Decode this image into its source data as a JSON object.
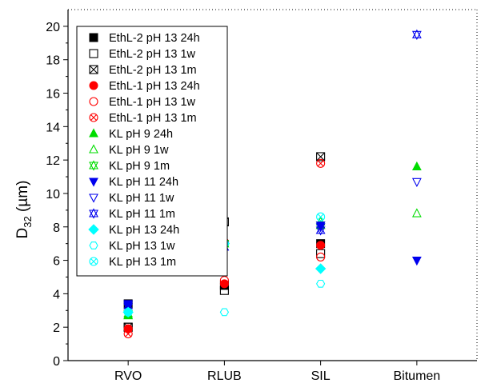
{
  "chart_data": {
    "type": "scatter",
    "title": "",
    "xlabel": "",
    "ylabel_main": "D",
    "ylabel_sub": "32",
    "ylabel_unit": " (µm)",
    "categories": [
      "RVO",
      "RLUB",
      "SIL",
      "Bitumen"
    ],
    "ylim": [
      0,
      21
    ],
    "yticks": [
      0,
      2,
      4,
      6,
      8,
      10,
      12,
      14,
      16,
      18,
      20
    ],
    "grid": false,
    "legend_position": "top-left",
    "series": [
      {
        "name": "EthL-2 pH 13 24h",
        "marker": "square-filled",
        "color": "#000000",
        "values": [
          3.4,
          4.5,
          7.0,
          null
        ]
      },
      {
        "name": "EthL-2 pH 13 1w",
        "marker": "square-open",
        "color": "#000000",
        "values": [
          2.0,
          4.2,
          6.4,
          null
        ]
      },
      {
        "name": "EthL-2 pH 13 1m",
        "marker": "square-x",
        "color": "#000000",
        "values": [
          2.0,
          8.3,
          12.2,
          null
        ]
      },
      {
        "name": "EthL-1 pH 13 24h",
        "marker": "circle-filled",
        "color": "#ff0000",
        "values": [
          1.9,
          4.6,
          6.9,
          null
        ]
      },
      {
        "name": "EthL-1 pH 13 1w",
        "marker": "circle-open",
        "color": "#ff0000",
        "values": [
          1.9,
          4.8,
          6.2,
          null
        ]
      },
      {
        "name": "EthL-1 pH 13 1m",
        "marker": "circle-x",
        "color": "#ff0000",
        "values": [
          1.6,
          7.1,
          11.8,
          null
        ]
      },
      {
        "name": "KL pH 9 24h",
        "marker": "triangle-up-filled",
        "color": "#00dd00",
        "values": [
          2.7,
          7.1,
          8.1,
          11.6
        ]
      },
      {
        "name": "KL pH 9 1w",
        "marker": "triangle-up-open",
        "color": "#00dd00",
        "values": [
          2.7,
          7.0,
          8.3,
          8.8
        ]
      },
      {
        "name": "KL pH 9 1m",
        "marker": "triangle-x",
        "color": "#00dd00",
        "values": [
          2.8,
          7.0,
          8.1,
          null
        ]
      },
      {
        "name": "KL pH 11 24h",
        "marker": "triangle-down-filled",
        "color": "#0000ee",
        "values": [
          3.4,
          6.8,
          8.1,
          6.0
        ]
      },
      {
        "name": "KL pH 11 1w",
        "marker": "triangle-down-open",
        "color": "#0000ee",
        "values": [
          3.2,
          6.9,
          8.0,
          10.7
        ]
      },
      {
        "name": "KL pH 11 1m",
        "marker": "triangle-x",
        "color": "#0000ee",
        "values": [
          3.3,
          6.8,
          7.8,
          19.5
        ]
      },
      {
        "name": "KL pH 13 24h",
        "marker": "diamond-filled",
        "color": "#00ffff",
        "values": [
          2.9,
          7.0,
          5.5,
          null
        ]
      },
      {
        "name": "KL pH 13 1w",
        "marker": "hexagon-open",
        "color": "#00ffff",
        "values": [
          2.9,
          2.9,
          4.6,
          null
        ]
      },
      {
        "name": "KL pH 13 1m",
        "marker": "circle-x",
        "color": "#00ffff",
        "values": [
          2.9,
          7.0,
          8.6,
          null
        ]
      }
    ]
  }
}
